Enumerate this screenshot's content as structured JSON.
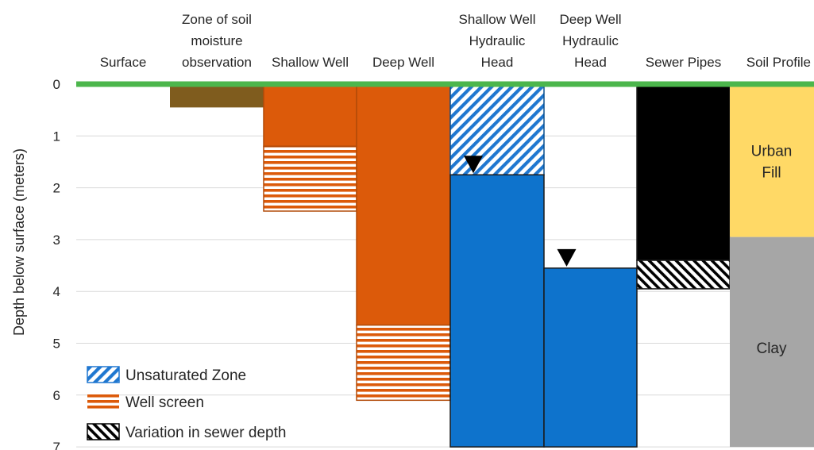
{
  "chart_data": {
    "type": "bar",
    "ylabel": "Depth below surface (meters)",
    "ylim": [
      0,
      7
    ],
    "y_inverted": true,
    "y_ticks": [
      "0",
      "1",
      "2",
      "3",
      "4",
      "5",
      "6",
      "7"
    ],
    "grid": true,
    "columns": [
      {
        "label": [
          "Surface"
        ]
      },
      {
        "label": [
          "Zone of soil",
          "moisture",
          "observation"
        ]
      },
      {
        "label": [
          "Shallow Well"
        ]
      },
      {
        "label": [
          "Deep Well"
        ]
      },
      {
        "label": [
          "Shallow Well",
          "Hydraulic",
          "Head"
        ]
      },
      {
        "label": [
          "Deep Well",
          "Hydraulic",
          "Head"
        ]
      },
      {
        "label": [
          "Sewer Pipes"
        ]
      },
      {
        "label": [
          "Soil Profile"
        ]
      }
    ],
    "segments": [
      {
        "column": 1,
        "from": 0,
        "to": 0.45,
        "kind": "soil_moisture_zone"
      },
      {
        "column": 2,
        "from": 0,
        "to": 1.2,
        "kind": "well_casing"
      },
      {
        "column": 2,
        "from": 1.2,
        "to": 2.45,
        "kind": "well_screen"
      },
      {
        "column": 3,
        "from": 0,
        "to": 4.65,
        "kind": "well_casing"
      },
      {
        "column": 3,
        "from": 4.65,
        "to": 6.1,
        "kind": "well_screen"
      },
      {
        "column": 4,
        "from": 0,
        "to": 1.75,
        "kind": "unsaturated_zone"
      },
      {
        "column": 4,
        "from": 1.75,
        "to": 7,
        "kind": "saturated"
      },
      {
        "column": 5,
        "from": 3.55,
        "to": 7,
        "kind": "saturated"
      },
      {
        "column": 6,
        "from": 0,
        "to": 3.4,
        "kind": "sewer_pipe"
      },
      {
        "column": 6,
        "from": 3.4,
        "to": 3.95,
        "kind": "sewer_depth_variation"
      },
      {
        "column": 7,
        "from": 0,
        "to": 2.95,
        "kind": "urban_fill"
      },
      {
        "column": 7,
        "from": 2.95,
        "to": 7,
        "kind": "clay"
      }
    ],
    "water_table_markers": [
      {
        "column": 4,
        "depth": 1.75
      },
      {
        "column": 5,
        "depth": 3.55
      }
    ],
    "soil_labels": [
      {
        "lines": [
          "Urban",
          "Fill"
        ],
        "depth": 1.5
      },
      {
        "lines": [
          "Clay"
        ],
        "depth": 5.1
      }
    ],
    "legend": {
      "position": "bottom-left",
      "entries": [
        {
          "label": "Unsaturated Zone",
          "pattern": "unsaturated_zone"
        },
        {
          "label": "Well screen",
          "pattern": "well_screen"
        },
        {
          "label": "Variation in sewer depth",
          "pattern": "sewer_depth_variation"
        }
      ]
    },
    "colors": {
      "surface_line": "#4CB64C",
      "soil_moisture_zone": "#7F5C1E",
      "well_casing": "#DC5A0A",
      "saturated": "#0E73CC",
      "unsaturated_stripe": "#1F77D0",
      "sewer_pipe": "#000000",
      "urban_fill": "#FFD966",
      "clay": "#A6A6A6",
      "gridline": "#D9D9D9",
      "outline": "#1A1A1A"
    }
  }
}
